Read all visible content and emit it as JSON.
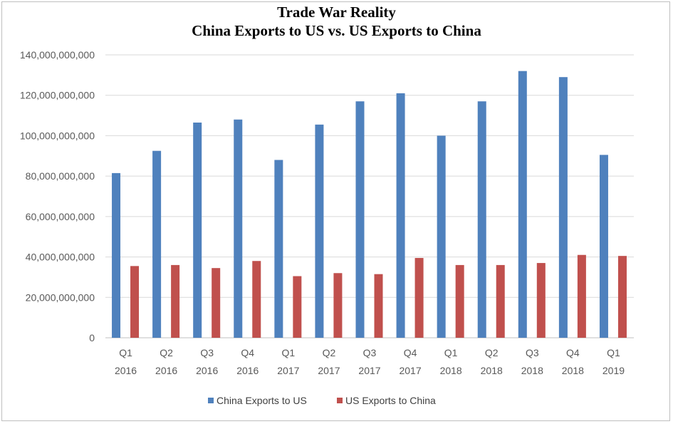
{
  "chart_data": {
    "type": "bar",
    "title": "Trade War Reality",
    "subtitle": "China Exports to US vs. US Exports to China",
    "xlabel": "",
    "ylabel": "",
    "ylim": [
      0,
      140000000000
    ],
    "yticks": [
      0,
      20000000000,
      40000000000,
      60000000000,
      80000000000,
      100000000000,
      120000000000,
      140000000000
    ],
    "ytick_labels": [
      "0",
      "20,000,000,000",
      "40,000,000,000",
      "60,000,000,000",
      "80,000,000,000",
      "100,000,000,000",
      "120,000,000,000",
      "140,000,000,000"
    ],
    "grid": true,
    "legend_position": "bottom",
    "categories": [
      [
        "Q1",
        "2016"
      ],
      [
        "Q2",
        "2016"
      ],
      [
        "Q3",
        "2016"
      ],
      [
        "Q4",
        "2016"
      ],
      [
        "Q1",
        "2017"
      ],
      [
        "Q2",
        "2017"
      ],
      [
        "Q3",
        "2017"
      ],
      [
        "Q4",
        "2017"
      ],
      [
        "Q1",
        "2018"
      ],
      [
        "Q2",
        "2018"
      ],
      [
        "Q3",
        "2018"
      ],
      [
        "Q4",
        "2018"
      ],
      [
        "Q1",
        "2019"
      ]
    ],
    "series": [
      {
        "name": "China Exports to US",
        "color": "#4f81bd",
        "values": [
          81500000000,
          92500000000,
          106500000000,
          108000000000,
          88000000000,
          105500000000,
          117000000000,
          121000000000,
          100000000000,
          117000000000,
          132000000000,
          129000000000,
          90500000000
        ]
      },
      {
        "name": "US Exports to China",
        "color": "#c0504d",
        "values": [
          35500000000,
          36000000000,
          34500000000,
          38000000000,
          30500000000,
          32000000000,
          31500000000,
          39500000000,
          36000000000,
          36000000000,
          37000000000,
          41000000000,
          40500000000
        ]
      }
    ]
  }
}
